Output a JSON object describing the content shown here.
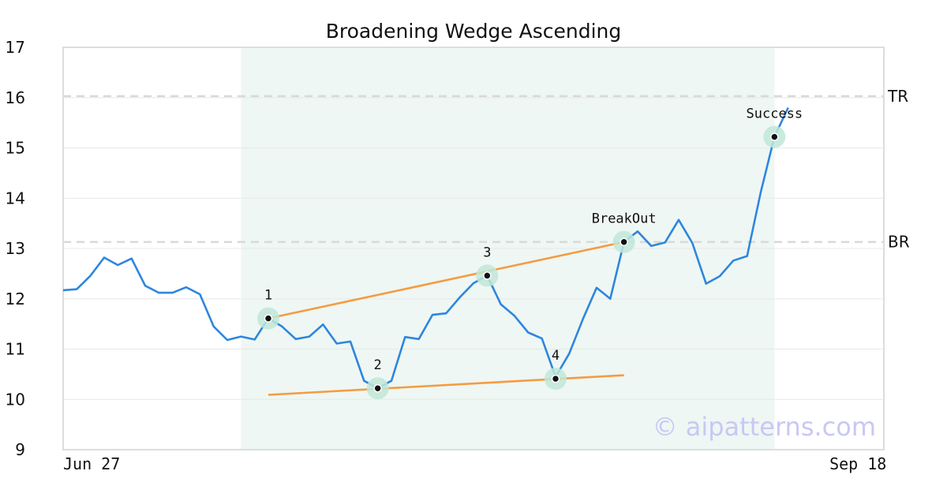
{
  "chart_data": {
    "type": "line",
    "title": "Broadening Wedge Ascending",
    "ylim": [
      9,
      17
    ],
    "yticks": [
      9,
      10,
      11,
      12,
      13,
      14,
      15,
      16,
      17
    ],
    "x_range": [
      0,
      60
    ],
    "x_tick_labels": [
      {
        "x": 0,
        "label": "Jun 27"
      },
      {
        "x": 58,
        "label": "Sep 18"
      }
    ],
    "grid": "horizontal",
    "pattern_region": {
      "x_start": 13,
      "x_end": 52
    },
    "series": [
      {
        "color": "#2e86de",
        "x": [
          0,
          1,
          2,
          3,
          4,
          5,
          6,
          7,
          8,
          9,
          10,
          11,
          12,
          13,
          14,
          15,
          16,
          17,
          18,
          19,
          20,
          21,
          22,
          23,
          24,
          25,
          26,
          27,
          28,
          29,
          30,
          31,
          32,
          33,
          34,
          35,
          36,
          37,
          38,
          39,
          40,
          41,
          42,
          43,
          44,
          45,
          46,
          47,
          48,
          49,
          50,
          51,
          52,
          53
        ],
        "values": [
          12.17,
          12.19,
          12.46,
          12.82,
          12.67,
          12.8,
          12.26,
          12.12,
          12.12,
          12.23,
          12.09,
          11.45,
          11.18,
          11.25,
          11.19,
          11.61,
          11.45,
          11.2,
          11.25,
          11.49,
          11.11,
          11.15,
          10.37,
          10.22,
          10.37,
          11.24,
          11.2,
          11.68,
          11.71,
          12.03,
          12.31,
          12.46,
          11.89,
          11.66,
          11.33,
          11.21,
          10.45,
          10.91,
          11.6,
          12.22,
          12.0,
          13.13,
          13.34,
          13.05,
          13.12,
          13.57,
          13.11,
          12.3,
          12.45,
          12.76,
          12.85,
          14.12,
          15.22,
          15.8
        ]
      }
    ],
    "reference_lines": [
      {
        "label": "TR",
        "value": 16.03
      },
      {
        "label": "BR",
        "value": 13.13
      }
    ],
    "trend_lines": [
      {
        "x": [
          15,
          41
        ],
        "y": [
          11.61,
          13.13
        ]
      },
      {
        "x": [
          15,
          41
        ],
        "y": [
          10.09,
          10.48
        ]
      }
    ],
    "points": [
      {
        "label": "1",
        "x": 15,
        "y": 11.61,
        "label_pos": "above"
      },
      {
        "label": "2",
        "x": 23,
        "y": 10.22,
        "label_pos": "above"
      },
      {
        "label": "3",
        "x": 31,
        "y": 12.46,
        "label_pos": "above"
      },
      {
        "label": "4",
        "x": 36,
        "y": 10.41,
        "label_pos": "above"
      },
      {
        "label": "BreakOut",
        "x": 41,
        "y": 13.13,
        "label_pos": "above"
      },
      {
        "label": "Success",
        "x": 52,
        "y": 15.22,
        "label_pos": "above"
      }
    ],
    "colors": {
      "line": "#2e86de",
      "trend": "#f59b42",
      "region": "#eef7f3",
      "marker_halo": "#bfe8d8",
      "reference": "#d9d9d9"
    }
  },
  "watermark": "© aipatterns.com"
}
